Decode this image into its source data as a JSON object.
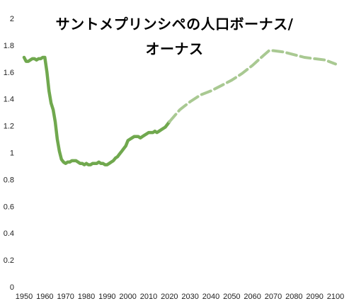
{
  "chart_data": {
    "type": "line",
    "title_lines": [
      "サントメプリンシペの人口ボーナス/",
      "オーナス"
    ],
    "xlabel": "",
    "ylabel": "",
    "xlim": [
      1950,
      2100
    ],
    "ylim": [
      0,
      2
    ],
    "x_ticks": [
      "1950",
      "1960",
      "1970",
      "1980",
      "1990",
      "2000",
      "2010",
      "2020",
      "2030",
      "2040",
      "2050",
      "2060",
      "2070",
      "2080",
      "2090",
      "2100"
    ],
    "y_ticks": [
      "0",
      "0.2",
      "0.4",
      "0.6",
      "0.8",
      "1",
      "1.2",
      "1.4",
      "1.6",
      "1.8",
      "2"
    ],
    "grid": false,
    "legend": "none",
    "colors": {
      "observed": "#70a84e",
      "projected": "#a9c992"
    },
    "series": [
      {
        "style": "solid",
        "x": [
          1950,
          1951,
          1952,
          1953,
          1954,
          1955,
          1956,
          1957,
          1958,
          1959,
          1960,
          1961,
          1962,
          1963,
          1964,
          1965,
          1966,
          1967,
          1968,
          1969,
          1970,
          1971,
          1972,
          1973,
          1974,
          1975,
          1976,
          1977,
          1978,
          1979,
          1980,
          1981,
          1982,
          1983,
          1984,
          1985,
          1986,
          1987,
          1988,
          1989,
          1990,
          1991,
          1992,
          1993,
          1994,
          1995,
          1996,
          1997,
          1998,
          1999,
          2000,
          2001,
          2002,
          2003,
          2004,
          2005,
          2006,
          2007,
          2008,
          2009,
          2010,
          2011,
          2012,
          2013,
          2014,
          2015,
          2016,
          2017,
          2018,
          2019,
          2020
        ],
        "values": [
          1.71,
          1.68,
          1.68,
          1.69,
          1.7,
          1.7,
          1.69,
          1.7,
          1.7,
          1.71,
          1.71,
          1.6,
          1.46,
          1.37,
          1.32,
          1.23,
          1.1,
          1.01,
          0.95,
          0.93,
          0.92,
          0.93,
          0.93,
          0.94,
          0.94,
          0.94,
          0.93,
          0.92,
          0.92,
          0.91,
          0.92,
          0.91,
          0.91,
          0.92,
          0.92,
          0.92,
          0.93,
          0.92,
          0.92,
          0.91,
          0.91,
          0.92,
          0.93,
          0.94,
          0.96,
          0.97,
          0.99,
          1.01,
          1.03,
          1.05,
          1.09,
          1.1,
          1.11,
          1.12,
          1.12,
          1.12,
          1.11,
          1.12,
          1.13,
          1.14,
          1.15,
          1.15,
          1.15,
          1.16,
          1.15,
          1.16,
          1.17,
          1.18,
          1.19,
          1.21,
          1.23
        ]
      },
      {
        "style": "dashed",
        "x": [
          2020,
          2025,
          2030,
          2035,
          2040,
          2045,
          2050,
          2055,
          2060,
          2065,
          2068,
          2070,
          2075,
          2080,
          2085,
          2090,
          2095,
          2100
        ],
        "values": [
          1.23,
          1.32,
          1.38,
          1.43,
          1.46,
          1.5,
          1.54,
          1.59,
          1.65,
          1.72,
          1.76,
          1.76,
          1.75,
          1.73,
          1.71,
          1.7,
          1.69,
          1.66
        ]
      }
    ]
  }
}
